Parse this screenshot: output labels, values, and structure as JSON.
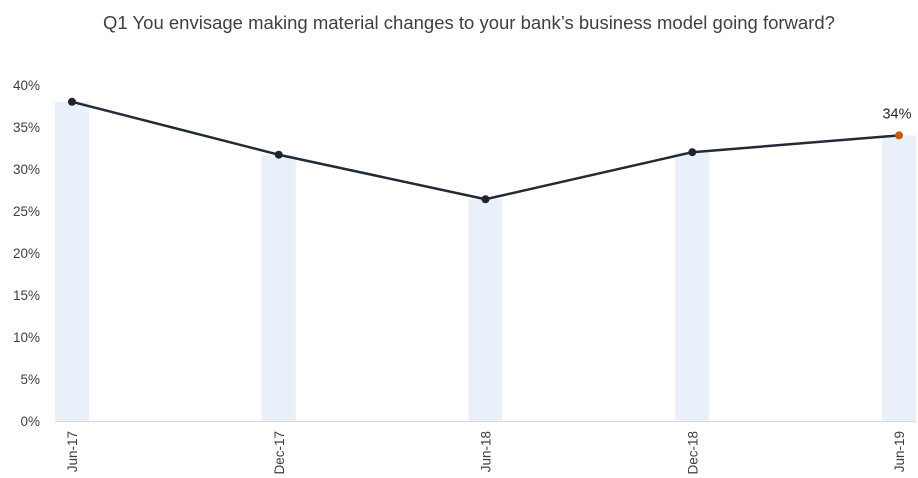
{
  "chart_data": {
    "type": "line",
    "title": "Q1 You envisage making material changes to your bank’s business model going forward?",
    "categories": [
      "Jun-17",
      "Dec-17",
      "Jun-18",
      "Dec-18",
      "Jun-19"
    ],
    "series": [
      {
        "values": [
          38,
          31.7,
          26.4,
          32,
          34
        ]
      }
    ],
    "background_bars": [
      38,
      31.7,
      26.4,
      32,
      34
    ],
    "data_labels": [
      {
        "index": 4,
        "text": "34%"
      }
    ],
    "y_ticks": [
      "0%",
      "5%",
      "10%",
      "15%",
      "20%",
      "25%",
      "30%",
      "35%",
      "40%"
    ],
    "ylim": [
      0,
      40
    ],
    "xlabel": "",
    "ylabel": "",
    "grid": false,
    "legend": "none",
    "colors": {
      "line": "#222a35",
      "marker": "#1f2530",
      "highlight_marker": "#c55a11",
      "bars": "#e9f0f9",
      "axis": "#d9d9d9",
      "text": "#404040"
    }
  }
}
